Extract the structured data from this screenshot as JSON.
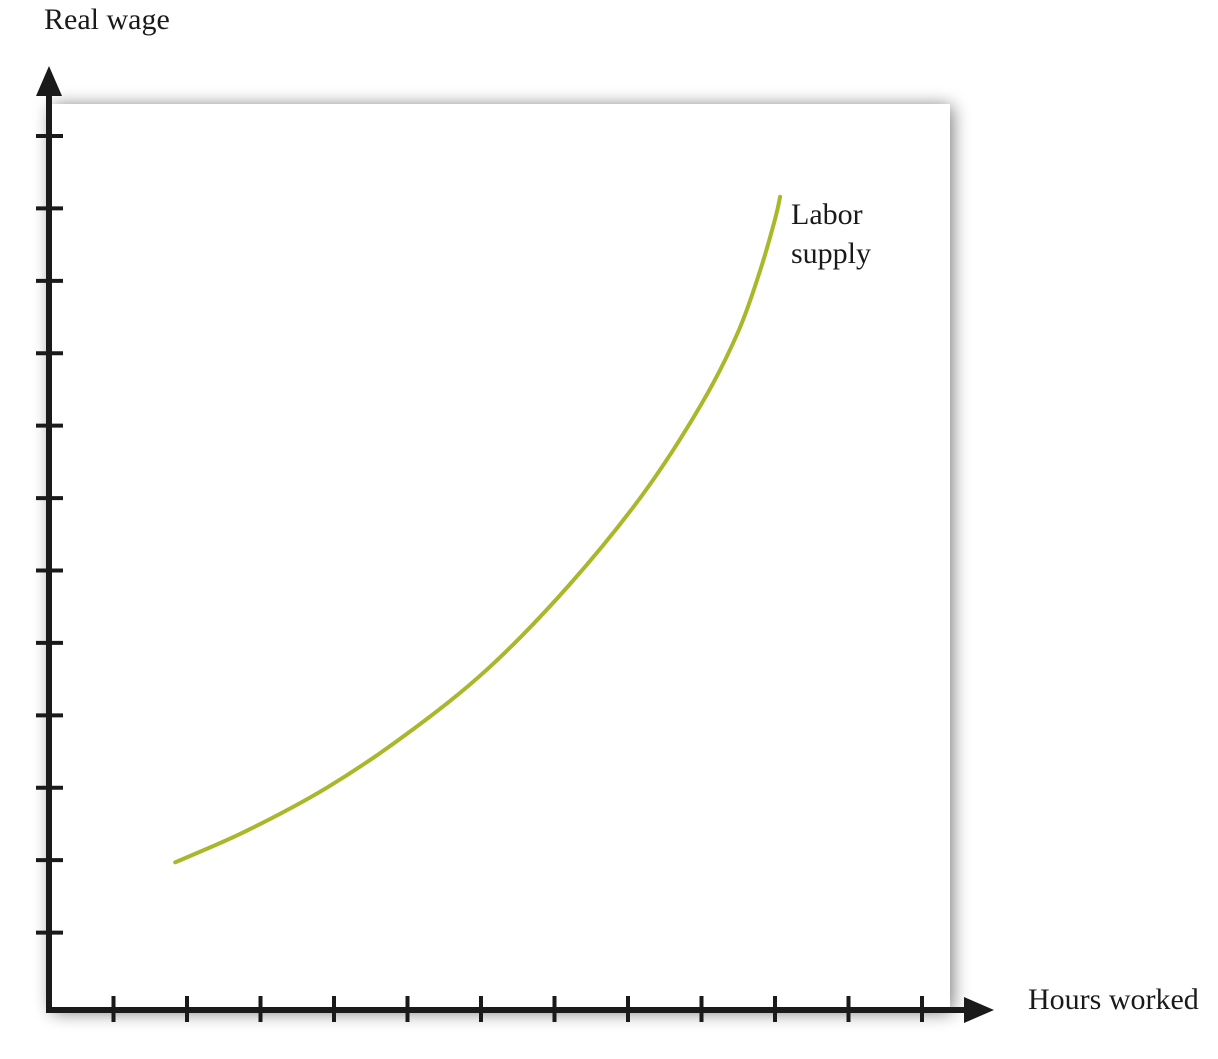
{
  "chart_data": {
    "type": "line",
    "title": "",
    "xlabel": "Hours worked",
    "ylabel": "Real wage",
    "xlim": [
      0,
      12
    ],
    "ylim": [
      0,
      12
    ],
    "x_ticks": [
      1,
      2,
      3,
      4,
      5,
      6,
      7,
      8,
      9,
      10,
      11,
      12
    ],
    "y_ticks": [
      1,
      2,
      3,
      4,
      5,
      6,
      7,
      8,
      9,
      10,
      11,
      12
    ],
    "tick_labels_shown": false,
    "grid": false,
    "legend": "none",
    "series": [
      {
        "name": "Labor supply",
        "label_lines": [
          "Labor",
          "supply"
        ],
        "color": "#a8b82a",
        "x": [
          1.84,
          2.8,
          3.9,
          5.0,
          6.1,
          7.2,
          8.2,
          9.0,
          9.5,
          9.8,
          10.0,
          10.07
        ],
        "y": [
          1.97,
          2.4,
          3.0,
          3.75,
          4.65,
          5.8,
          7.05,
          8.3,
          9.3,
          10.15,
          10.85,
          11.16
        ]
      }
    ],
    "colors": {
      "axis": "#1a1a1a",
      "plot_background": "#ffffff",
      "curve": "#a8b82a"
    }
  }
}
